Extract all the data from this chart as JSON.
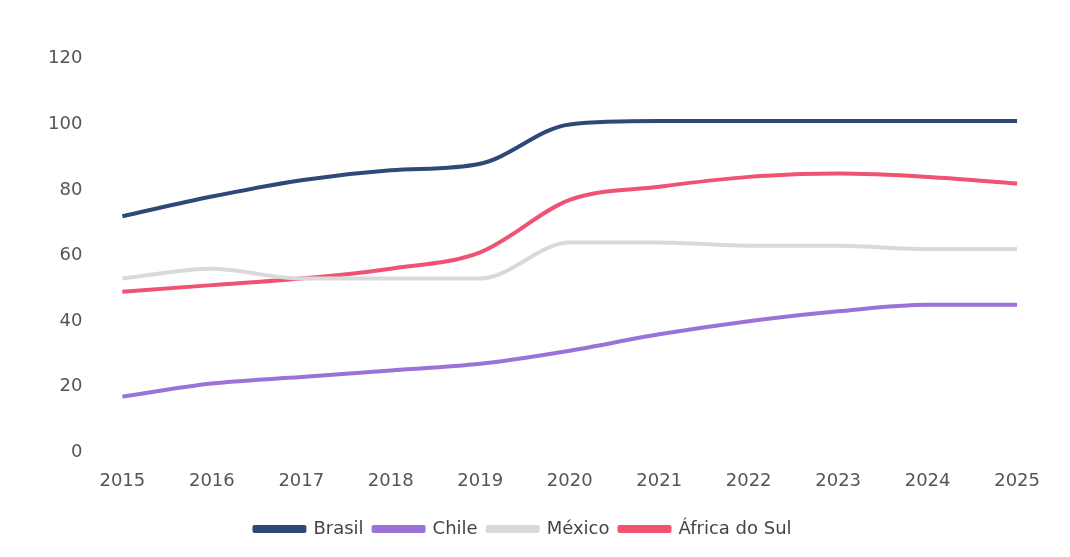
{
  "chart_data": {
    "type": "line",
    "categories": [
      "2015",
      "2016",
      "2017",
      "2018",
      "2019",
      "2020",
      "2021",
      "2022",
      "2023",
      "2024",
      "2025"
    ],
    "series": [
      {
        "name": "Brasil",
        "color": "#2f4878",
        "values": [
          72,
          78,
          83,
          86,
          88,
          100,
          101,
          101,
          101,
          101,
          101
        ]
      },
      {
        "name": "Chile",
        "color": "#9a72d8",
        "values": [
          17,
          21,
          23,
          25,
          27,
          31,
          36,
          40,
          43,
          45,
          45
        ]
      },
      {
        "name": "México",
        "color": "#d9d9d9",
        "values": [
          53,
          56,
          53,
          53,
          53,
          64,
          64,
          63,
          63,
          62,
          62
        ]
      },
      {
        "name": "África do Sul",
        "color": "#ef5273",
        "values": [
          49,
          51,
          53,
          56,
          61,
          77,
          81,
          84,
          85,
          84,
          82
        ]
      }
    ],
    "ylim": [
      0,
      120
    ],
    "yticks": [
      0,
      20,
      40,
      60,
      80,
      100,
      120
    ],
    "grid": false,
    "legend": "bottom",
    "marker": "none",
    "line_style": "solid"
  }
}
